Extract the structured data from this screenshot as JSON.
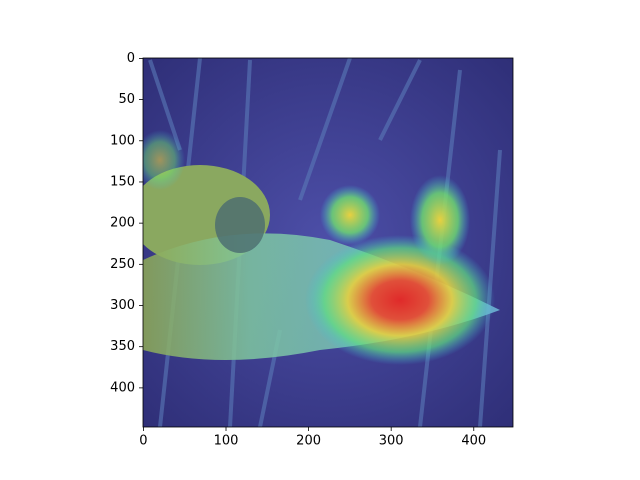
{
  "chart_data": {
    "type": "image",
    "xlim": [
      -0.5,
      447.5
    ],
    "ylim": [
      447.5,
      -0.5
    ],
    "xticks": [
      0,
      100,
      200,
      300,
      400
    ],
    "yticks": [
      0,
      50,
      100,
      150,
      200,
      250,
      300,
      350,
      400
    ]
  }
}
